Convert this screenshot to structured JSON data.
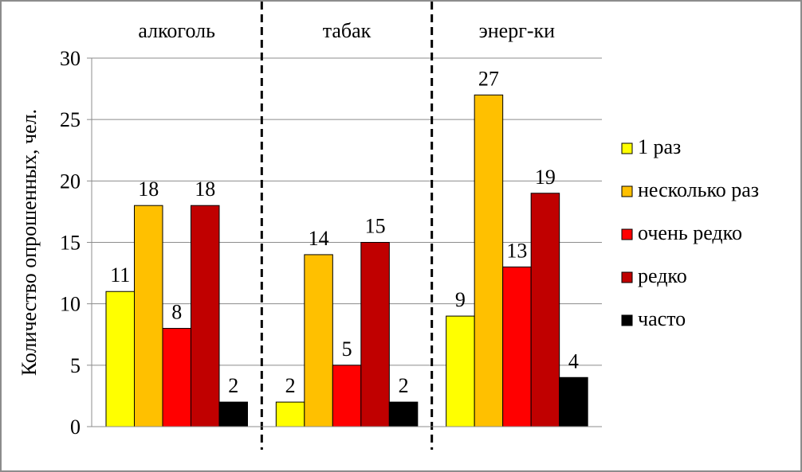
{
  "chart_data": {
    "type": "bar",
    "categories": [
      "алкоголь",
      "табак",
      "энерг-ки"
    ],
    "series": [
      {
        "name": "1 раз",
        "color": "#ffff00",
        "values": [
          11,
          2,
          9
        ]
      },
      {
        "name": "несколько раз",
        "color": "#ffc000",
        "values": [
          18,
          14,
          27
        ]
      },
      {
        "name": "очень редко",
        "color": "#ff0000",
        "values": [
          8,
          5,
          13
        ]
      },
      {
        "name": "редко",
        "color": "#c00000",
        "values": [
          18,
          15,
          19
        ]
      },
      {
        "name": "часто",
        "color": "#000000",
        "values": [
          2,
          2,
          4
        ]
      }
    ],
    "ylabel": "Количество опрошенных, чел.",
    "ylim": [
      0,
      30
    ],
    "yticks": [
      0,
      5,
      10,
      15,
      20,
      25,
      30
    ],
    "grid": true,
    "group_separators": "dashed",
    "legend_position": "right"
  }
}
